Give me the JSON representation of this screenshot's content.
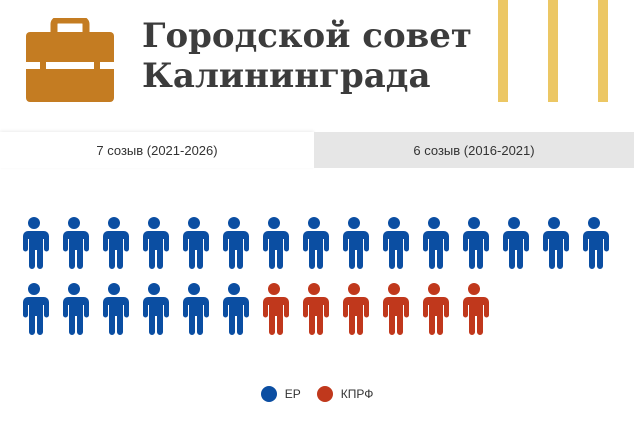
{
  "header": {
    "title_line1": "Городской совет",
    "title_line2": "Калининграда",
    "icon": "briefcase-icon"
  },
  "tabs": [
    {
      "label": "7 созыв (2021-2026)",
      "active": true
    },
    {
      "label": "6 созыв (2016-2021)",
      "active": false
    }
  ],
  "parties": [
    {
      "name": "ЕР",
      "seats": 21,
      "color": "#0b4ea2"
    },
    {
      "name": "КПРФ",
      "seats": 6,
      "color": "#c0381c"
    }
  ],
  "colors": {
    "accent_gold": "#ecc764",
    "briefcase": "#c47c22",
    "title": "#3c3c3c",
    "inactive_tab": "#e6e6e6"
  }
}
